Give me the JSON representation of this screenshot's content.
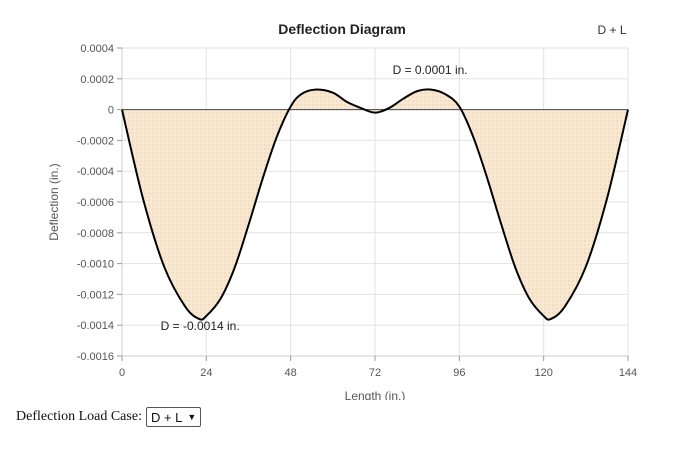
{
  "chart_data": {
    "type": "area",
    "title": "Deflection Diagram",
    "load_case_label": "D + L",
    "xlabel": "Length (in.)",
    "ylabel": "Deflection (in.)",
    "xlim": [
      0,
      144
    ],
    "ylim": [
      -0.0016,
      0.0004
    ],
    "x_ticks": [
      0,
      24,
      48,
      72,
      96,
      120,
      144
    ],
    "y_ticks": [
      0.0004,
      0.0002,
      0,
      -0.0002,
      -0.0004,
      -0.0006,
      -0.0008,
      -0.001,
      -0.0012,
      -0.0014,
      -0.0016
    ],
    "y_tick_labels": [
      "0.0004",
      "0.0002",
      "0",
      "-0.0002",
      "-0.0004",
      "-0.0006",
      "-0.0008",
      "-0.0010",
      "-0.0012",
      "-0.0014",
      "-0.0016"
    ],
    "grid": true,
    "series": [
      {
        "x": [
          0,
          6,
          12,
          18,
          22,
          24,
          28,
          32,
          36,
          40,
          44,
          48,
          51,
          55,
          60,
          64,
          68,
          72,
          76,
          80,
          84,
          88,
          92,
          96,
          100,
          104,
          108,
          112,
          116,
          120,
          122,
          126,
          132,
          138,
          144
        ],
        "y": [
          0,
          -0.00058,
          -0.00102,
          -0.00128,
          -0.00136,
          -0.00134,
          -0.00123,
          -0.00103,
          -0.00075,
          -0.00045,
          -0.00018,
          2e-05,
          0.0001,
          0.00013,
          0.00011,
          5e-05,
          1e-05,
          -2e-05,
          1e-05,
          7e-05,
          0.00012,
          0.00013,
          0.0001,
          2e-05,
          -0.00018,
          -0.00045,
          -0.00075,
          -0.00103,
          -0.00123,
          -0.00134,
          -0.00136,
          -0.00128,
          -0.00102,
          -0.00058,
          0
        ]
      }
    ],
    "annotations": [
      {
        "text": "D = 0.0001 in.",
        "x": 77,
        "y": 0.00023
      },
      {
        "text": "D = -0.0014 in.",
        "x": 11,
        "y": -0.00143
      }
    ],
    "colors": {
      "fill": "#f6e3c9",
      "line": "#000000",
      "grid": "#e2e2e2"
    }
  },
  "controls": {
    "load_case_label": "Deflection Load Case:",
    "load_case_value": "D + L"
  }
}
